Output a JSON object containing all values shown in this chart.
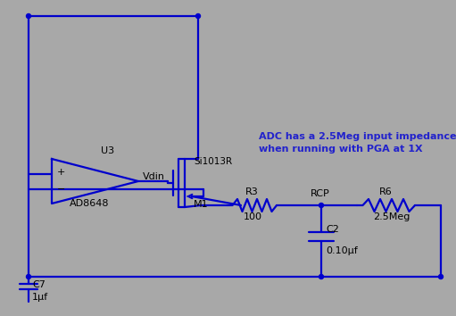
{
  "background_color": "#a8a8a8",
  "line_color": "#0000cc",
  "line_width": 1.6,
  "dot_color": "#0000cc",
  "text_color": "#000000",
  "annotation_color": "#2222cc",
  "components": {
    "opamp_label": "U3",
    "opamp_name": "AD8648",
    "vdin_label": "Vdin",
    "mosfet_label": "Si1013R",
    "mosfet_ref": "M1",
    "r3_label": "R3",
    "r3_value": "100",
    "rcp_label": "RCP",
    "r6_label": "R6",
    "r6_value": "2.5Meg",
    "c2_label": "C2",
    "c2_value": "0.10μf",
    "c7_label": "C7",
    "c7_value": "1μf",
    "annotation": "ADC has a 2.5Meg input impedance\nwhen running with PGA at 1X"
  }
}
